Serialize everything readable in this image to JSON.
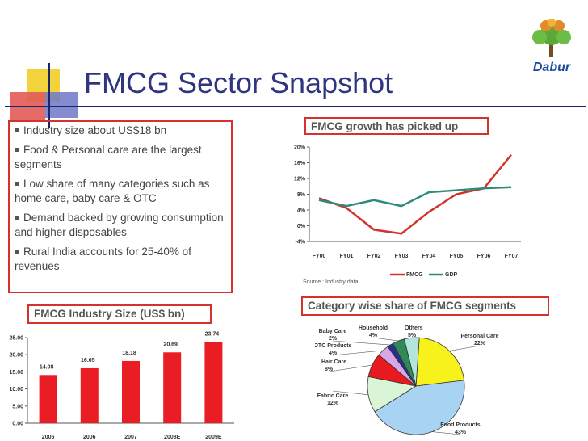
{
  "slide": {
    "title": "FMCG Sector Snapshot",
    "logo_text": "Dabur"
  },
  "bullets": [
    "Industry size about US$18 bn",
    "Food & Personal care are the largest segments",
    "Low share of many categories such as home care, baby care & OTC",
    "Demand backed by growing consumption and higher disposables",
    "Rural India accounts for 25-40% of revenues"
  ],
  "sections": {
    "growth_title": "FMCG growth has picked up",
    "size_title": "FMCG Industry Size (US$ bn)",
    "category_title": "Category wise share of FMCG segments",
    "source": "Source : Industry data"
  },
  "colors": {
    "accent_red": "#d3322d",
    "title_blue": "#30357f",
    "fmcg_line": "#d3322d",
    "gdp_line": "#2e8b7a",
    "bar": "#ea1c24"
  },
  "chart_data": [
    {
      "id": "growth",
      "type": "line",
      "title": "FMCG growth has picked up",
      "categories": [
        "FY00",
        "FY01",
        "FY02",
        "FY03",
        "FY04",
        "FY05",
        "FY06",
        "FY07"
      ],
      "series": [
        {
          "name": "FMCG",
          "color": "#d3322d",
          "values": [
            7,
            4.5,
            -1,
            -2,
            3.5,
            8,
            9.5,
            18
          ]
        },
        {
          "name": "GDP",
          "color": "#2e8b7a",
          "values": [
            6.5,
            5,
            6.5,
            5,
            8.5,
            9,
            9.5,
            9.8
          ]
        }
      ],
      "yticks": [
        "20%",
        "16%",
        "12%",
        "8%",
        "4%",
        "0%",
        "-4%"
      ],
      "ylim": [
        -4,
        20
      ],
      "xlabel": "",
      "ylabel": ""
    },
    {
      "id": "size",
      "type": "bar",
      "title": "FMCG Industry Size (US$ bn)",
      "categories": [
        "2005",
        "2006",
        "2007",
        "2008E",
        "2009E"
      ],
      "values": [
        14.08,
        16.05,
        18.18,
        20.69,
        23.74
      ],
      "labels": [
        "14.08",
        "16.05",
        "18.18",
        "20.69",
        "23.74"
      ],
      "yticks": [
        "25.00",
        "20.00",
        "15.00",
        "10.00",
        "5.00",
        "0.00"
      ],
      "ylim": [
        0,
        25
      ],
      "xlabel": "",
      "ylabel": ""
    },
    {
      "id": "category",
      "type": "pie",
      "title": "Category wise share of FMCG segments",
      "slices": [
        {
          "name": "Personal Care",
          "value": 22,
          "label": "22%",
          "color": "#f7f21c"
        },
        {
          "name": "Food Products",
          "value": 43,
          "label": "43%",
          "color": "#a9d3f3"
        },
        {
          "name": "Fabric Care",
          "value": 12,
          "label": "12%",
          "color": "#d9f5d5"
        },
        {
          "name": "Hair Care",
          "value": 8,
          "label": "8%",
          "color": "#e8191f"
        },
        {
          "name": "OTC Products",
          "value": 4,
          "label": "4%",
          "color": "#d9a7e6"
        },
        {
          "name": "Baby Care",
          "value": 2,
          "label": "2%",
          "color": "#2a2f8f"
        },
        {
          "name": "Household",
          "value": 4,
          "label": "4%",
          "color": "#2e8b57"
        },
        {
          "name": "Others",
          "value": 5,
          "label": "5%",
          "color": "#b3e5dc"
        }
      ]
    }
  ]
}
